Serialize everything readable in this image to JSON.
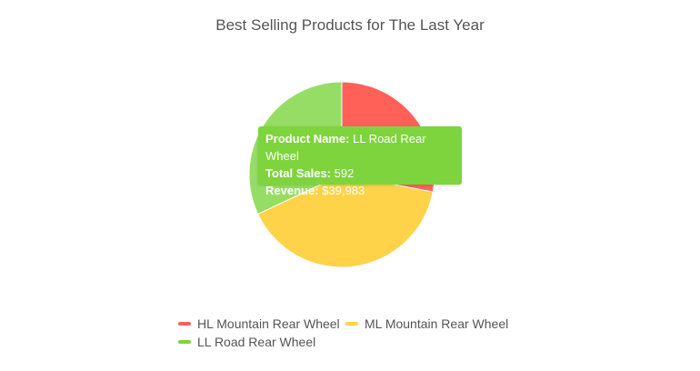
{
  "chart_data": {
    "type": "pie",
    "title": "Best Selling Products for The Last Year",
    "slices": [
      {
        "label": "HL Mountain Rear Wheel",
        "color": "#ff6158",
        "value": 28
      },
      {
        "label": "ML Mountain Rear Wheel",
        "color": "#ffd349",
        "value": 40
      },
      {
        "label": "LL Road Rear Wheel",
        "color": "#96dd65",
        "value": 32
      }
    ],
    "legend_position": "bottom",
    "legend_color_ll_road": "#7ed43c"
  },
  "tooltip": {
    "product_key": "Product Name:",
    "product_value": "LL Road Rear Wheel",
    "sales_key": "Total Sales:",
    "sales_value": "592",
    "revenue_key": "Revenue:",
    "revenue_value": "$39,983",
    "color": "#7ed43c"
  }
}
